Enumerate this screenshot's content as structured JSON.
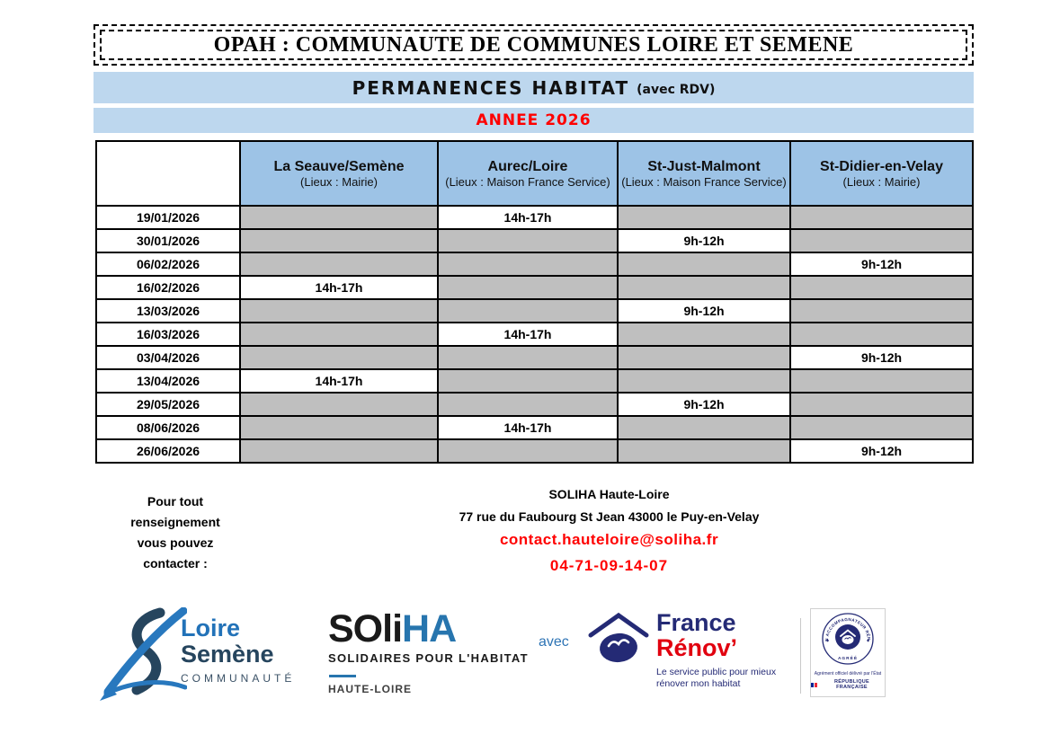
{
  "header": {
    "title": "OPAH : COMMUNAUTE DE COMMUNES LOIRE ET SEMENE",
    "subtitle": "PERMANENCES HABITAT",
    "subtitle_note": "(avec RDV)",
    "year": "ANNEE 2026"
  },
  "schedule": {
    "columns": [
      {
        "name": "La Seauve/Semène",
        "place": "(Lieux : Mairie)"
      },
      {
        "name": "Aurec/Loire",
        "place": "(Lieux : Maison France Service)"
      },
      {
        "name": "St-Just-Malmont",
        "place": "(Lieux : Maison France Service)"
      },
      {
        "name": "St-Didier-en-Velay",
        "place": "(Lieux : Mairie)"
      }
    ],
    "rows": [
      {
        "date": "19/01/2026",
        "times": [
          "",
          "14h-17h",
          "",
          ""
        ]
      },
      {
        "date": "30/01/2026",
        "times": [
          "",
          "",
          "9h-12h",
          ""
        ]
      },
      {
        "date": "06/02/2026",
        "times": [
          "",
          "",
          "",
          "9h-12h"
        ]
      },
      {
        "date": "16/02/2026",
        "times": [
          "14h-17h",
          "",
          "",
          ""
        ]
      },
      {
        "date": "13/03/2026",
        "times": [
          "",
          "",
          "9h-12h",
          ""
        ]
      },
      {
        "date": "16/03/2026",
        "times": [
          "",
          "14h-17h",
          "",
          ""
        ]
      },
      {
        "date": "03/04/2026",
        "times": [
          "",
          "",
          "",
          "9h-12h"
        ]
      },
      {
        "date": "13/04/2026",
        "times": [
          "14h-17h",
          "",
          "",
          ""
        ]
      },
      {
        "date": "29/05/2026",
        "times": [
          "",
          "",
          "9h-12h",
          ""
        ]
      },
      {
        "date": "08/06/2026",
        "times": [
          "",
          "14h-17h",
          "",
          ""
        ]
      },
      {
        "date": "26/06/2026",
        "times": [
          "",
          "",
          "",
          "9h-12h"
        ]
      }
    ]
  },
  "contact": {
    "left_lines": [
      "Pour tout",
      "renseignement",
      "vous pouvez",
      "contacter :"
    ],
    "org": "SOLIHA Haute-Loire",
    "address": "77 rue du Faubourg St Jean 43000 le Puy-en-Velay",
    "email": "contact.hauteloire@soliha.fr",
    "phone": "04-71-09-14-07"
  },
  "logos": {
    "loire_semene": {
      "line1": "Loire",
      "line2": "Semène",
      "line3": "COMMUNAUTÉ"
    },
    "soliha": {
      "name_black": "SOli",
      "name_blue": "HA",
      "tagline": "SOLIDAIRES POUR L'HABITAT",
      "region": "HAUTE-LOIRE"
    },
    "avec": "avec",
    "france_renov": {
      "line1": "France",
      "line2": "Rénov’",
      "tagline1": "Le service public pour mieux",
      "tagline2": "rénover mon habitat"
    },
    "badge": {
      "seal_top": "MON ACCOMPAGNATEUR RÉNOV’",
      "seal_bottom": "AGRÉÉ",
      "line1": "Agrément officiel délivré par l’État",
      "line2": "RÉPUBLIQUE FRANÇAISE"
    }
  },
  "colors": {
    "band_blue": "#BDD7EE",
    "header_blue": "#9DC3E6",
    "cell_gray": "#BFBFBF",
    "accent_red": "#FF0000",
    "navy": "#242A75",
    "renov_red": "#E1000F",
    "soliha_blue": "#2775AE",
    "loire_blue": "#2272B8",
    "semene_dark": "#26455E"
  }
}
